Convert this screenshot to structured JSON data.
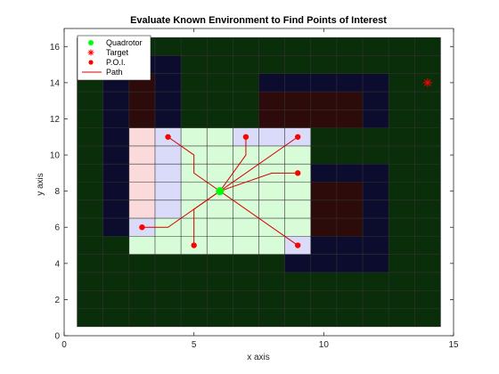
{
  "chart_data": {
    "type": "scatter",
    "title": "Evaluate Known Environment to Find Points of Interest",
    "xlabel": "x axis",
    "ylabel": "y axis",
    "xlim": [
      0,
      15
    ],
    "ylim": [
      0,
      17
    ],
    "xticks": [
      0,
      5,
      10,
      15
    ],
    "yticks": [
      0,
      2,
      4,
      6,
      8,
      10,
      12,
      14,
      16
    ],
    "grid_extent": {
      "x": [
        0.5,
        14.5
      ],
      "y": [
        0.5,
        16.5
      ]
    },
    "grid": "unit cells with dark gray border",
    "background_color": "#0a2e0a",
    "colors": {
      "dark_green": "#0a2e0a",
      "dark_navy": "#0c0d2e",
      "dark_maroon": "#2e0b0b",
      "light_green": "#d8fbd8",
      "light_lavender": "#dadaf9",
      "light_pink": "#fadadb",
      "path_red": "#d40000",
      "poi_red": "#ff0000",
      "quadrotor_green": "#00ff00",
      "target_red": "#ff0000"
    },
    "regions": [
      {
        "name": "navy",
        "color": "#0c0d2e",
        "x": [
          1.5,
          4.5
        ],
        "y": [
          5.5,
          15.5
        ]
      },
      {
        "name": "navy",
        "color": "#0c0d2e",
        "x": [
          3.5,
          12.5
        ],
        "y": [
          11.5,
          14.5
        ]
      },
      {
        "name": "navy",
        "color": "#0c0d2e",
        "x": [
          8.5,
          12.5
        ],
        "y": [
          3.5,
          9.5
        ]
      },
      {
        "name": "green",
        "color": "#0a2e0a",
        "x": [
          1.5,
          2.5
        ],
        "y": [
          4.5,
          5.5
        ]
      },
      {
        "name": "green",
        "color": "#0a2e0a",
        "x": [
          4.5,
          7.5
        ],
        "y": [
          11.5,
          15.5
        ]
      },
      {
        "name": "green",
        "color": "#0a2e0a",
        "x": [
          9.5,
          11.5
        ],
        "y": [
          9.5,
          10.5
        ]
      },
      {
        "name": "maroon",
        "color": "#2e0b0b",
        "x": [
          2.5,
          3.5
        ],
        "y": [
          11.5,
          14.5
        ]
      },
      {
        "name": "maroon",
        "color": "#2e0b0b",
        "x": [
          7.5,
          11.5
        ],
        "y": [
          11.5,
          13.5
        ]
      },
      {
        "name": "maroon",
        "color": "#2e0b0b",
        "x": [
          9.5,
          11.5
        ],
        "y": [
          5.5,
          8.5
        ]
      },
      {
        "name": "light-green",
        "color": "#d8fbd8",
        "x": [
          2.5,
          9.5
        ],
        "y": [
          4.5,
          11.5
        ]
      },
      {
        "name": "light-pink",
        "color": "#fadadb",
        "x": [
          2.5,
          3.5
        ],
        "y": [
          6.5,
          11.5
        ]
      },
      {
        "name": "light-lavender",
        "color": "#dadaf9",
        "x": [
          3.5,
          4.5
        ],
        "y": [
          6.5,
          11.5
        ]
      },
      {
        "name": "light-lavender",
        "color": "#dadaf9",
        "x": [
          2.5,
          3.5
        ],
        "y": [
          5.5,
          6.5
        ]
      },
      {
        "name": "light-lavender",
        "color": "#dadaf9",
        "x": [
          6.5,
          9.5
        ],
        "y": [
          10.5,
          11.5
        ]
      },
      {
        "name": "light-lavender",
        "color": "#dadaf9",
        "x": [
          8.5,
          9.5
        ],
        "y": [
          4.5,
          5.5
        ]
      }
    ],
    "series": [
      {
        "name": "Quadrotor",
        "marker": "filled-circle",
        "color": "#00ff00",
        "points": [
          [
            6,
            8
          ]
        ]
      },
      {
        "name": "Target",
        "marker": "asterisk",
        "color": "#ff0000",
        "points": [
          [
            14,
            14
          ]
        ]
      },
      {
        "name": "P.O.I.",
        "marker": "filled-circle",
        "color": "#ff0000",
        "points": [
          [
            4,
            11
          ],
          [
            7,
            11
          ],
          [
            9,
            11
          ],
          [
            9,
            9
          ],
          [
            3,
            6
          ],
          [
            5,
            5
          ],
          [
            9,
            5
          ]
        ]
      },
      {
        "name": "Path",
        "marker": "line",
        "color": "#d40000",
        "paths": [
          [
            [
              6,
              8
            ],
            [
              5,
              9
            ],
            [
              5,
              10
            ],
            [
              4,
              11
            ]
          ],
          [
            [
              6,
              8
            ],
            [
              7,
              10
            ],
            [
              7,
              11
            ]
          ],
          [
            [
              6,
              8
            ],
            [
              9,
              11
            ]
          ],
          [
            [
              6,
              8
            ],
            [
              8,
              9
            ],
            [
              9,
              9
            ]
          ],
          [
            [
              6,
              8
            ],
            [
              4,
              6
            ],
            [
              3,
              6
            ]
          ],
          [
            [
              6,
              8
            ],
            [
              5,
              7
            ],
            [
              5,
              5
            ]
          ],
          [
            [
              6,
              8
            ],
            [
              9,
              5
            ]
          ]
        ]
      }
    ],
    "legend": {
      "placement": "top-left",
      "entries": [
        "Quadrotor",
        "Target",
        "P.O.I.",
        "Path"
      ]
    }
  }
}
